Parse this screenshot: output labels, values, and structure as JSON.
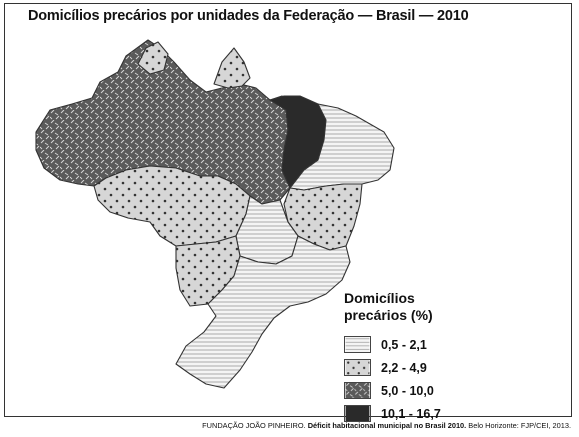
{
  "title": "Domicílios precários por unidades da Federação — Brasil — 2010",
  "legend": {
    "title_line1": "Domicílios",
    "title_line2": "precários (%)",
    "classes": [
      {
        "label": "0,5 - 2,1",
        "pattern": "horizontal-lines"
      },
      {
        "label": "2,2 - 4,9",
        "pattern": "dots"
      },
      {
        "label": "5,0 - 10,0",
        "pattern": "dashes"
      },
      {
        "label": "10,1 - 16,7",
        "pattern": "solid-dark"
      }
    ]
  },
  "source": {
    "author": "FUNDAÇÃO JOÃO PINHEIRO.",
    "work": "Déficit habitacional municipal no Brasil 2010.",
    "publisher": "Belo Horizonte: FJP/CEI, 2013."
  },
  "colors": {
    "fill_light": "#f3f3f3",
    "fill_dots": "#d4d4d4",
    "fill_dashes": "#585858",
    "fill_dark": "#2a2a2a",
    "border": "#333333"
  }
}
